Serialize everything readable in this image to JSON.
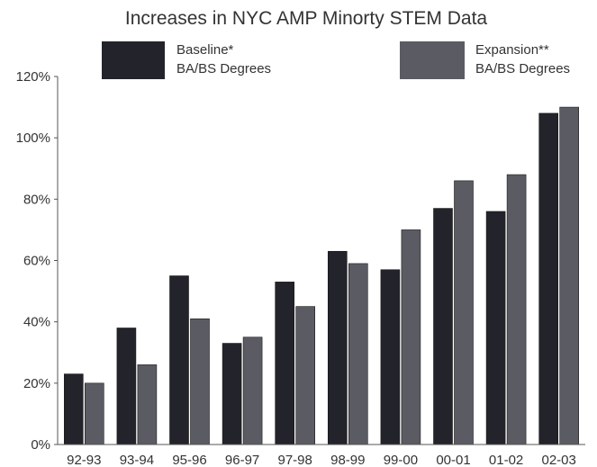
{
  "chart_data": {
    "type": "bar",
    "title": "Increases in NYC AMP Minorty STEM Data",
    "categories": [
      "92-93",
      "93-94",
      "95-96",
      "96-97",
      "97-98",
      "98-99",
      "99-00",
      "00-01",
      "01-02",
      "02-03"
    ],
    "series": [
      {
        "name_line1": "Baseline*",
        "name_line2": "BA/BS Degrees",
        "values": [
          23,
          38,
          55,
          33,
          53,
          63,
          57,
          77,
          76,
          108
        ],
        "color": "#23232b"
      },
      {
        "name_line1": "Expansion**",
        "name_line2": "BA/BS Degrees",
        "values": [
          20,
          26,
          41,
          35,
          45,
          59,
          70,
          86,
          88,
          110
        ],
        "color": "#5b5b63"
      }
    ],
    "yticks": [
      "0%",
      "20%",
      "40%",
      "60%",
      "80%",
      "100%",
      "120%"
    ],
    "ylim": [
      0,
      120
    ],
    "xlabel": "",
    "ylabel": "",
    "grid": false,
    "legend": "top"
  }
}
